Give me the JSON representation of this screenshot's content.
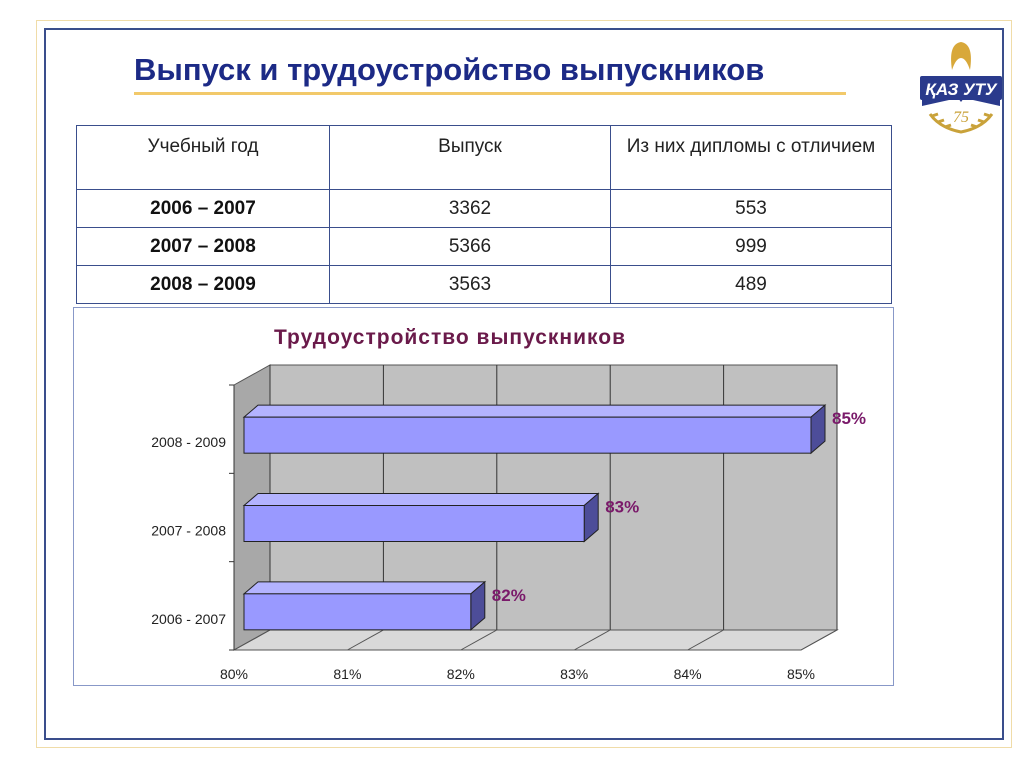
{
  "page": {
    "title": "Выпуск и трудоустройство выпускников",
    "logo_text": "ҚАЗ УТУ",
    "logo_badge": "75"
  },
  "table": {
    "headers": [
      "Учебный год",
      "Выпуск",
      "Из них дипломы с отличием"
    ],
    "rows": [
      [
        "2006 – 2007",
        "3362",
        "553"
      ],
      [
        "2007 – 2008",
        "5366",
        "999"
      ],
      [
        "2008 – 2009",
        "3563",
        "489"
      ]
    ]
  },
  "chart_data": {
    "type": "bar",
    "orientation": "horizontal",
    "title": "Трудоустройство выпускников",
    "categories": [
      "2006 - 2007",
      "2007 - 2008",
      "2008 - 2009"
    ],
    "values": [
      82,
      83,
      85
    ],
    "value_labels": [
      "82%",
      "83%",
      "85%"
    ],
    "xlim": [
      80,
      85
    ],
    "x_ticks": [
      "80%",
      "81%",
      "82%",
      "83%",
      "84%",
      "85%"
    ],
    "grid": true,
    "legend": "none",
    "colors": {
      "bar_front": "#9999ff",
      "bar_top": "#b3b3ff",
      "bar_side": "#4d4d99",
      "wall": "#c0c0c0",
      "floor": "#d9d9d9",
      "data_label": "#7a1a6a"
    }
  }
}
